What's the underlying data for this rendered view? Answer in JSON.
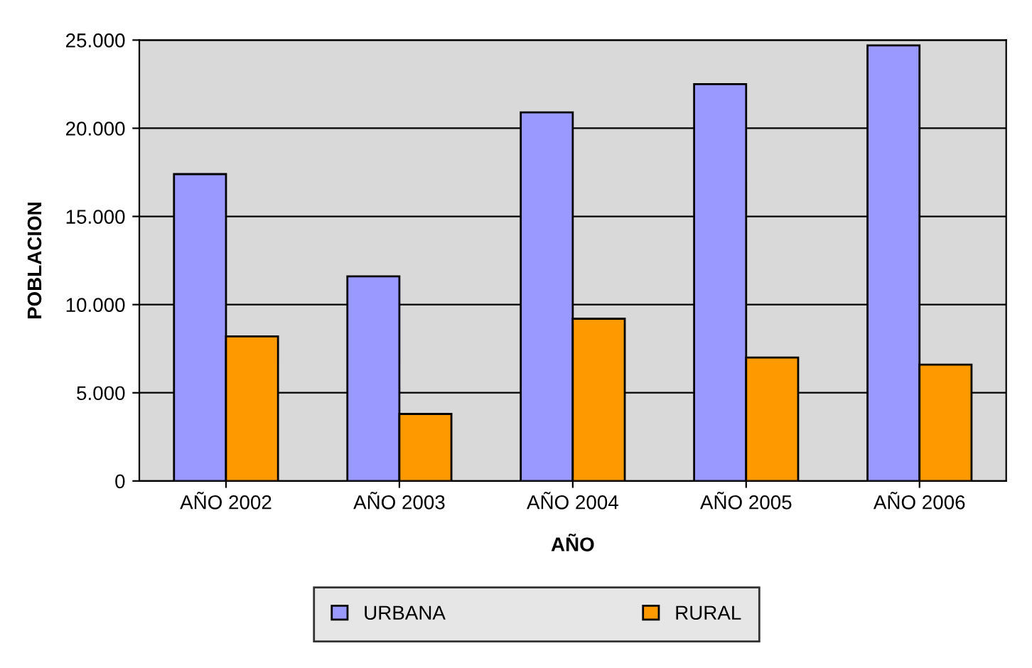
{
  "chart_data": {
    "type": "bar",
    "xlabel": "AÑO",
    "ylabel": "POBLACION",
    "categories": [
      "AÑO 2002",
      "AÑO 2003",
      "AÑO 2004",
      "AÑO 2005",
      "AÑO 2006"
    ],
    "series": [
      {
        "name": "URBANA",
        "color": "#9999ff",
        "values": [
          17400,
          11600,
          20900,
          22500,
          24700
        ]
      },
      {
        "name": "RURAL",
        "color": "#ff9900",
        "values": [
          8200,
          3800,
          9200,
          7000,
          6600
        ]
      }
    ],
    "ylim": [
      0,
      25000
    ],
    "yticks": [
      {
        "value": 0,
        "label": "0"
      },
      {
        "value": 5000,
        "label": "5.000"
      },
      {
        "value": 10000,
        "label": "10.000"
      },
      {
        "value": 15000,
        "label": "15.000"
      },
      {
        "value": 20000,
        "label": "20.000"
      },
      {
        "value": 25000,
        "label": "25.000"
      }
    ],
    "grid": "y",
    "legend": "bottom"
  }
}
